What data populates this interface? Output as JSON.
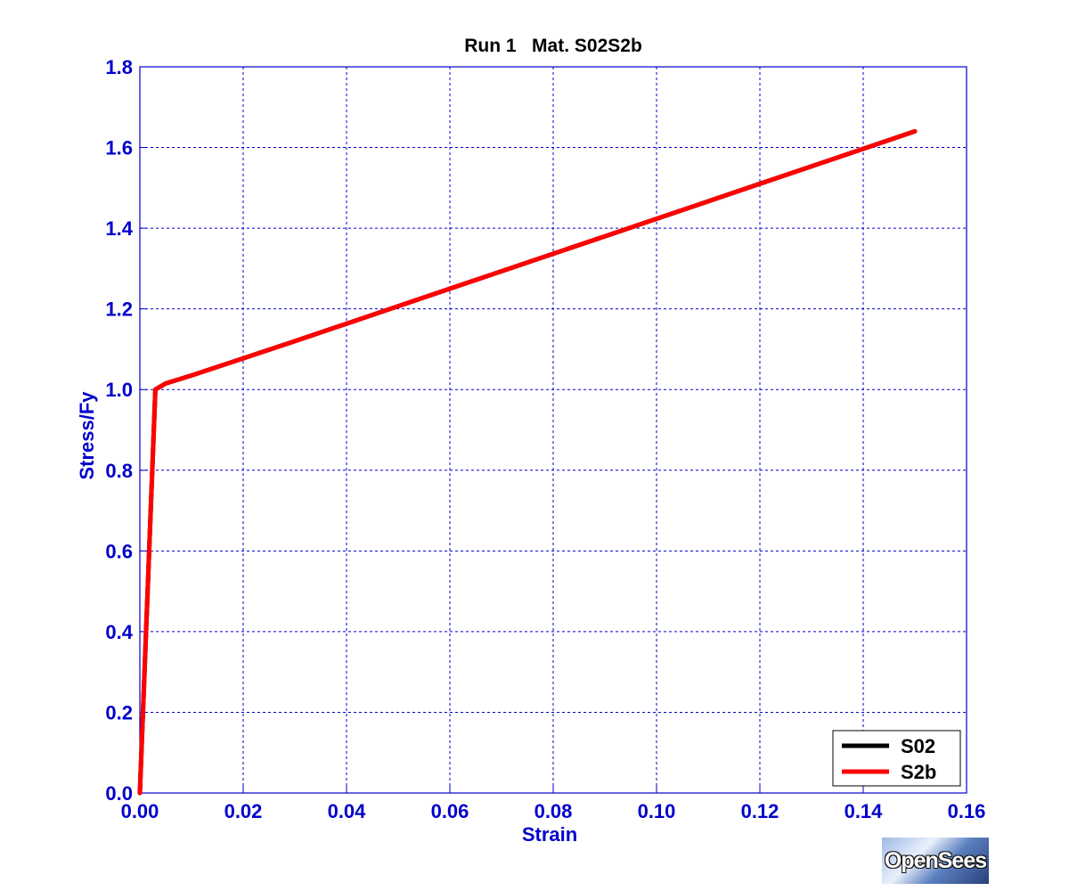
{
  "chart_data": {
    "type": "line",
    "title": "Run 1   Mat. S02S2b",
    "xlabel": "Strain",
    "ylabel": "Stress/Fy",
    "xlim": [
      0,
      0.16
    ],
    "ylim": [
      0,
      1.8
    ],
    "x_ticks": [
      "0.00",
      "0.02",
      "0.04",
      "0.06",
      "0.08",
      "0.10",
      "0.12",
      "0.14",
      "0.16"
    ],
    "y_ticks": [
      "0.0",
      "0.2",
      "0.4",
      "0.6",
      "0.8",
      "1.0",
      "1.2",
      "1.4",
      "1.6",
      "1.8"
    ],
    "grid": true,
    "legend_position": "bottom-right",
    "series": [
      {
        "name": "S02",
        "color": "#000000",
        "x": [
          0,
          0.003,
          0.005,
          0.01,
          0.03,
          0.06,
          0.09,
          0.12,
          0.15
        ],
        "y": [
          0,
          1.0,
          1.015,
          1.035,
          1.12,
          1.25,
          1.38,
          1.51,
          1.64
        ]
      },
      {
        "name": "S2b",
        "color": "#ff0000",
        "x": [
          0,
          0.003,
          0.005,
          0.01,
          0.03,
          0.06,
          0.09,
          0.12,
          0.15
        ],
        "y": [
          0,
          1.0,
          1.015,
          1.035,
          1.12,
          1.25,
          1.38,
          1.51,
          1.64
        ]
      }
    ]
  },
  "logo": {
    "text": "OpenSees"
  }
}
